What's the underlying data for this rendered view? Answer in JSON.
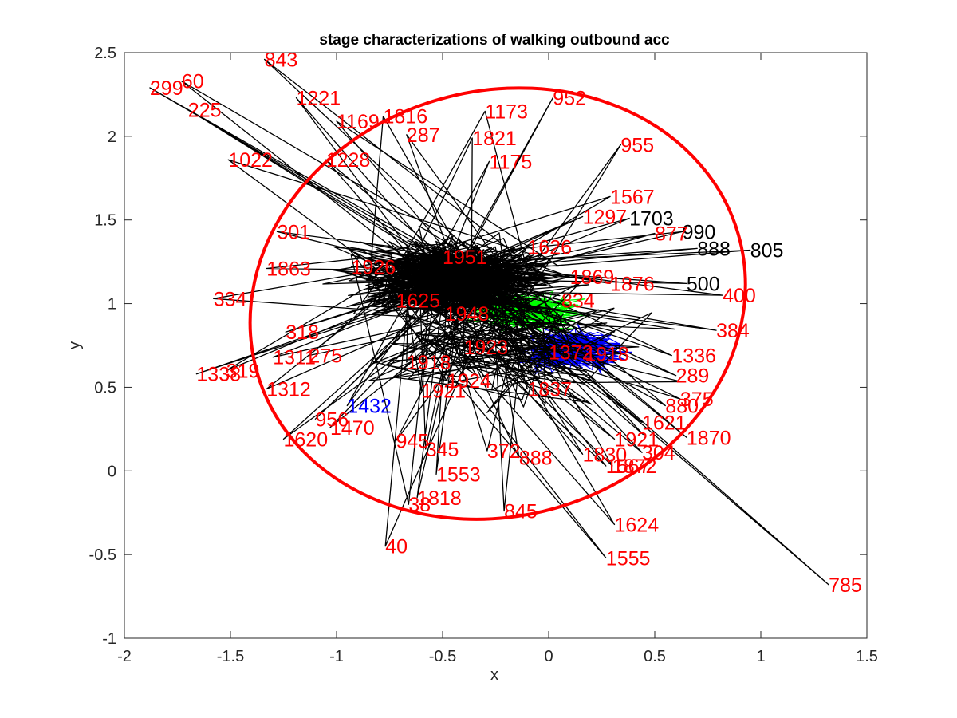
{
  "chart_data": {
    "type": "scatter",
    "title": "stage characterizations of walking outbound acc",
    "xlabel": "x",
    "ylabel": "y",
    "xlim": [
      -2,
      1.5
    ],
    "ylim": [
      -1,
      2.5
    ],
    "x_ticks": [
      "-2",
      "-1.5",
      "-1",
      "-0.5",
      "0",
      "0.5",
      "1",
      "1.5"
    ],
    "y_ticks": [
      "-1",
      "-0.5",
      "0",
      "0.5",
      "1",
      "1.5",
      "2",
      "2.5"
    ],
    "grid": false,
    "legend": "none",
    "colors": {
      "axes": "#262626",
      "trajectory": "#000000",
      "ellipse": "#ff0000",
      "cluster_green": "#00ff00",
      "cluster_blue": "#0000ff",
      "label_red": "#ff0000",
      "label_black": "#000000",
      "label_blue": "#0000ff"
    },
    "ellipse": {
      "cx": -0.24,
      "cy": 1.0,
      "rx": 1.18,
      "ry": 1.27,
      "angle_deg": -16
    },
    "clusters": [
      {
        "color": "#00ff00",
        "cx": -0.1,
        "cy": 0.95,
        "rx": 0.4,
        "ry": 0.18
      },
      {
        "color": "#0000ff",
        "cx": 0.12,
        "cy": 0.72,
        "rx": 0.38,
        "ry": 0.2
      }
    ],
    "labeled_points": [
      {
        "label": "843",
        "x": -1.34,
        "y": 2.46,
        "color": "red"
      },
      {
        "label": "299",
        "x": -1.88,
        "y": 2.29,
        "color": "red"
      },
      {
        "label": "60",
        "x": -1.73,
        "y": 2.33,
        "color": "red"
      },
      {
        "label": "225",
        "x": -1.7,
        "y": 2.16,
        "color": "red"
      },
      {
        "label": "1221",
        "x": -1.19,
        "y": 2.23,
        "color": "red"
      },
      {
        "label": "1169",
        "x": -1.0,
        "y": 2.09,
        "color": "red"
      },
      {
        "label": "1816",
        "x": -0.78,
        "y": 2.12,
        "color": "red"
      },
      {
        "label": "1173",
        "x": -0.3,
        "y": 2.15,
        "color": "red"
      },
      {
        "label": "952",
        "x": 0.02,
        "y": 2.23,
        "color": "red"
      },
      {
        "label": "287",
        "x": -0.67,
        "y": 2.01,
        "color": "red"
      },
      {
        "label": "1821",
        "x": -0.36,
        "y": 1.99,
        "color": "red"
      },
      {
        "label": "955",
        "x": 0.34,
        "y": 1.95,
        "color": "red"
      },
      {
        "label": "1175",
        "x": -0.28,
        "y": 1.85,
        "color": "red"
      },
      {
        "label": "1022",
        "x": -1.51,
        "y": 1.86,
        "color": "red"
      },
      {
        "label": "1228",
        "x": -1.05,
        "y": 1.86,
        "color": "red"
      },
      {
        "label": "1703",
        "x": 0.38,
        "y": 1.51,
        "color": "black"
      },
      {
        "label": "990",
        "x": 0.63,
        "y": 1.43,
        "color": "black"
      },
      {
        "label": "877",
        "x": 0.5,
        "y": 1.42,
        "color": "red"
      },
      {
        "label": "805",
        "x": 0.95,
        "y": 1.32,
        "color": "black"
      },
      {
        "label": "888",
        "x": 0.7,
        "y": 1.33,
        "color": "black"
      },
      {
        "label": "500",
        "x": 0.65,
        "y": 1.12,
        "color": "black"
      },
      {
        "label": "400",
        "x": 0.82,
        "y": 1.05,
        "color": "red"
      },
      {
        "label": "384",
        "x": 0.79,
        "y": 0.84,
        "color": "red"
      },
      {
        "label": "1336",
        "x": 0.58,
        "y": 0.69,
        "color": "red"
      },
      {
        "label": "289",
        "x": 0.6,
        "y": 0.57,
        "color": "red"
      },
      {
        "label": "375",
        "x": 0.62,
        "y": 0.43,
        "color": "red"
      },
      {
        "label": "880",
        "x": 0.55,
        "y": 0.39,
        "color": "red"
      },
      {
        "label": "1621",
        "x": 0.44,
        "y": 0.29,
        "color": "red"
      },
      {
        "label": "1870",
        "x": 0.65,
        "y": 0.2,
        "color": "red"
      },
      {
        "label": "1921",
        "x": 0.31,
        "y": 0.19,
        "color": "red"
      },
      {
        "label": "304",
        "x": 0.44,
        "y": 0.11,
        "color": "red"
      },
      {
        "label": "1951",
        "x": -0.5,
        "y": 1.28,
        "color": "red"
      },
      {
        "label": "1926",
        "x": -0.93,
        "y": 1.22,
        "color": "red"
      },
      {
        "label": "1625",
        "x": -0.72,
        "y": 1.02,
        "color": "red"
      },
      {
        "label": "1948",
        "x": -0.49,
        "y": 0.94,
        "color": "red"
      },
      {
        "label": "1923",
        "x": -0.4,
        "y": 0.74,
        "color": "red"
      },
      {
        "label": "1924",
        "x": -0.48,
        "y": 0.54,
        "color": "red"
      },
      {
        "label": "1918",
        "x": -0.67,
        "y": 0.65,
        "color": "red"
      },
      {
        "label": "1921",
        "x": -0.6,
        "y": 0.48,
        "color": "red"
      },
      {
        "label": "1432",
        "x": -0.95,
        "y": 0.39,
        "color": "blue"
      },
      {
        "label": "1869",
        "x": 0.1,
        "y": 1.16,
        "color": "red"
      },
      {
        "label": "1876",
        "x": 0.29,
        "y": 1.12,
        "color": "red"
      },
      {
        "label": "834",
        "x": 0.06,
        "y": 1.02,
        "color": "red"
      },
      {
        "label": "1372",
        "x": 0.0,
        "y": 0.71,
        "color": "red"
      },
      {
        "label": "1918",
        "x": 0.17,
        "y": 0.7,
        "color": "red"
      },
      {
        "label": "1837",
        "x": -0.1,
        "y": 0.49,
        "color": "red"
      },
      {
        "label": "334",
        "x": -1.58,
        "y": 1.03,
        "color": "red"
      },
      {
        "label": "301",
        "x": -1.28,
        "y": 1.43,
        "color": "red"
      },
      {
        "label": "1863",
        "x": -1.33,
        "y": 1.21,
        "color": "red"
      },
      {
        "label": "1338",
        "x": -1.66,
        "y": 0.58,
        "color": "red"
      },
      {
        "label": "319",
        "x": -1.52,
        "y": 0.6,
        "color": "red"
      },
      {
        "label": "1312",
        "x": -1.33,
        "y": 0.49,
        "color": "red"
      },
      {
        "label": "1311",
        "x": -1.3,
        "y": 0.68,
        "color": "red"
      },
      {
        "label": "318",
        "x": -1.24,
        "y": 0.83,
        "color": "red"
      },
      {
        "label": "275",
        "x": -1.13,
        "y": 0.69,
        "color": "red"
      },
      {
        "label": "1620",
        "x": -1.25,
        "y": 0.19,
        "color": "red"
      },
      {
        "label": "1470",
        "x": -1.03,
        "y": 0.26,
        "color": "red"
      },
      {
        "label": "956",
        "x": -1.1,
        "y": 0.31,
        "color": "red"
      },
      {
        "label": "945",
        "x": -0.72,
        "y": 0.18,
        "color": "red"
      },
      {
        "label": "345",
        "x": -0.58,
        "y": 0.13,
        "color": "red"
      },
      {
        "label": "372",
        "x": -0.29,
        "y": 0.12,
        "color": "red"
      },
      {
        "label": "888",
        "x": -0.14,
        "y": 0.08,
        "color": "red"
      },
      {
        "label": "1553",
        "x": -0.53,
        "y": -0.02,
        "color": "red"
      },
      {
        "label": "1818",
        "x": -0.62,
        "y": -0.16,
        "color": "red"
      },
      {
        "label": "38",
        "x": -0.66,
        "y": -0.2,
        "color": "red"
      },
      {
        "label": "845",
        "x": -0.21,
        "y": -0.24,
        "color": "red"
      },
      {
        "label": "40",
        "x": -0.77,
        "y": -0.45,
        "color": "red"
      },
      {
        "label": "1624",
        "x": 0.31,
        "y": -0.32,
        "color": "red"
      },
      {
        "label": "1555",
        "x": 0.27,
        "y": -0.52,
        "color": "red"
      },
      {
        "label": "785",
        "x": 1.32,
        "y": -0.68,
        "color": "red"
      },
      {
        "label": "1830",
        "x": 0.16,
        "y": 0.1,
        "color": "red"
      },
      {
        "label": "1567",
        "x": 0.27,
        "y": 0.03,
        "color": "red"
      },
      {
        "label": "1872",
        "x": 0.3,
        "y": 0.03,
        "color": "red"
      },
      {
        "label": "1626",
        "x": -0.1,
        "y": 1.34,
        "color": "red"
      },
      {
        "label": "1297",
        "x": 0.16,
        "y": 1.52,
        "color": "red"
      },
      {
        "label": "1567",
        "x": 0.29,
        "y": 1.64,
        "color": "red"
      }
    ]
  }
}
